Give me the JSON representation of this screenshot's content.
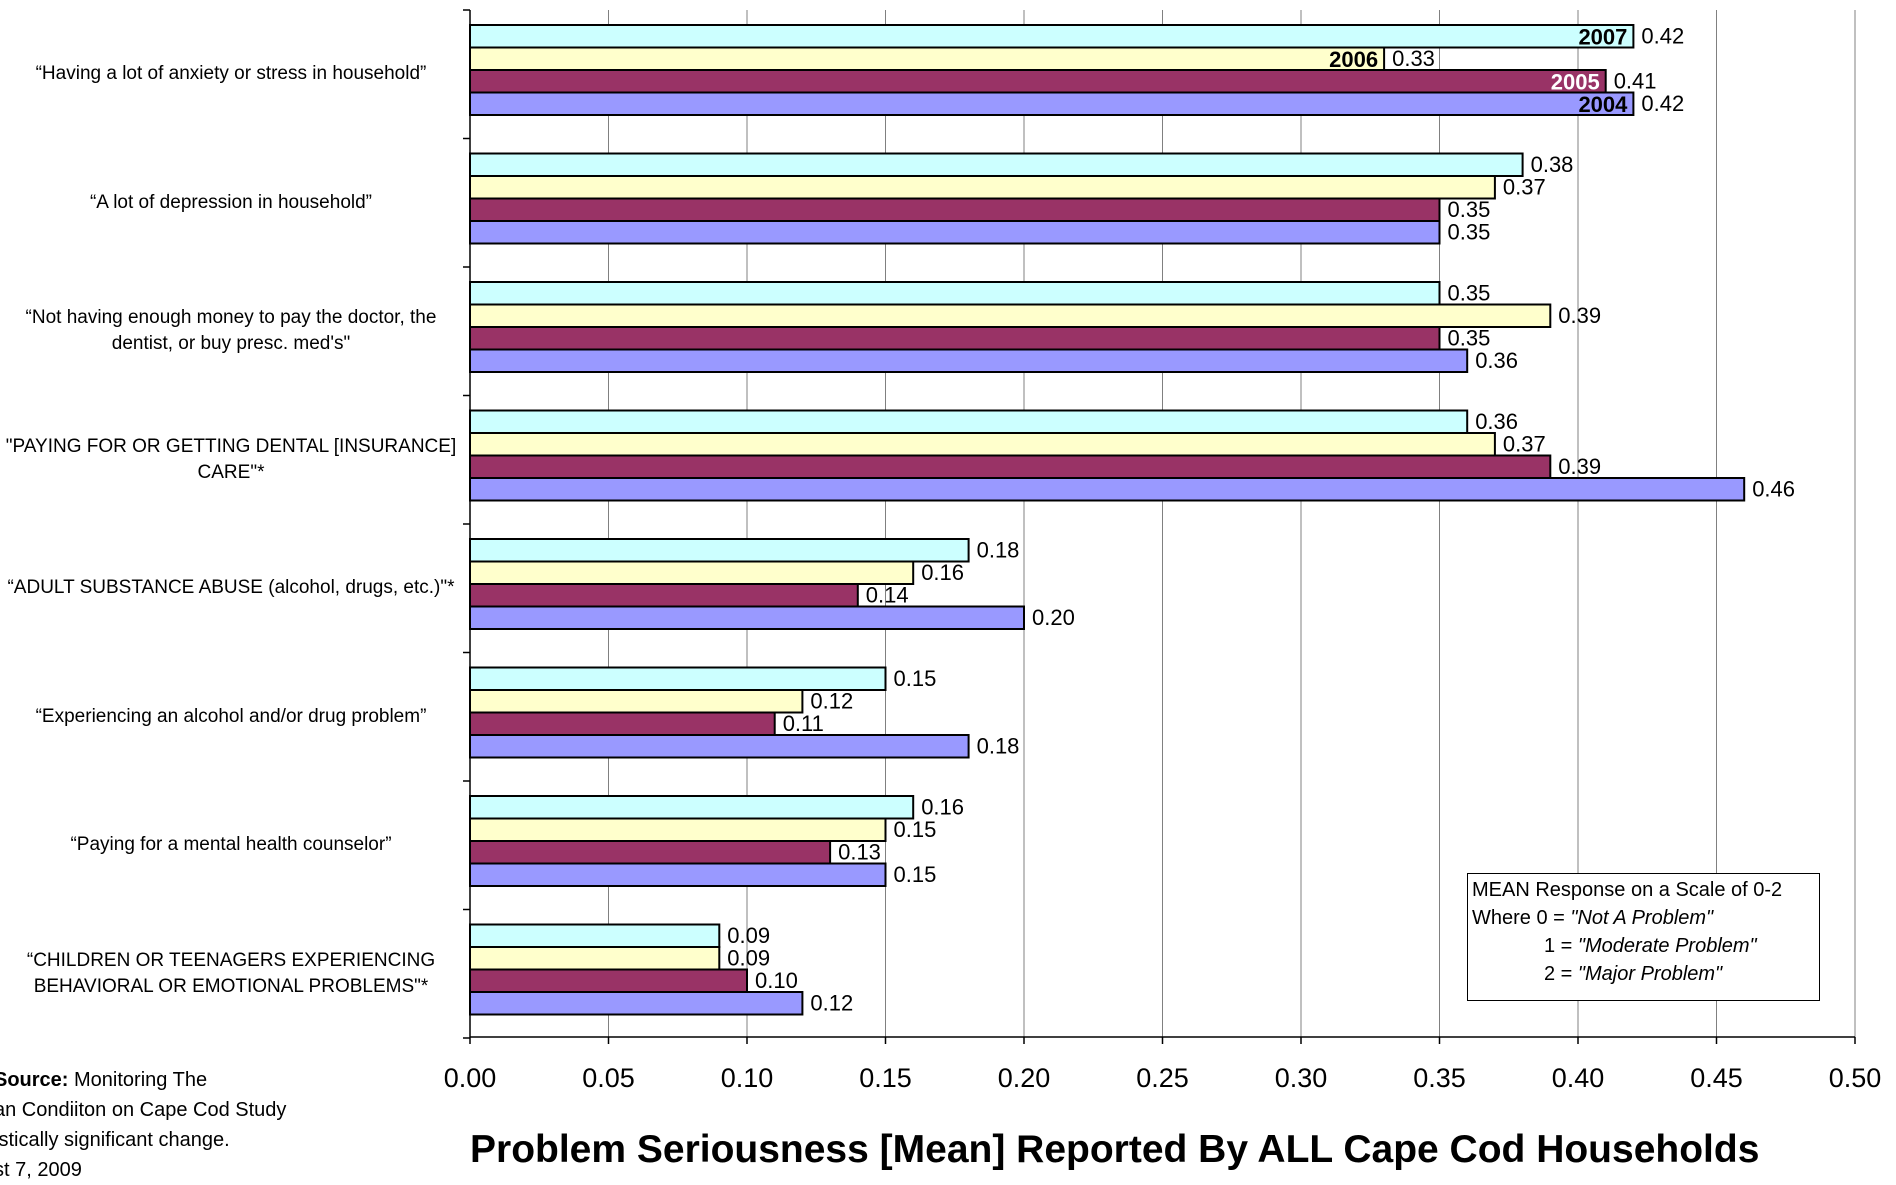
{
  "chart_data": {
    "type": "bar",
    "orientation": "horizontal",
    "title": "Problem Seriousness [Mean] Reported By ALL Cape Cod Households",
    "xlim": [
      0,
      0.5
    ],
    "x_ticks": [
      "0.00",
      "0.05",
      "0.10",
      "0.15",
      "0.20",
      "0.25",
      "0.30",
      "0.35",
      "0.40",
      "0.45",
      "0.50"
    ],
    "grid": true,
    "categories": [
      "“Having a lot of anxiety or stress in household”",
      "“A lot of depression in household”",
      "“Not having enough money to pay the doctor, the dentist, or buy presc. med's\"",
      "\"PAYING FOR OR GETTING DENTAL [INSURANCE] CARE\"*",
      "“ADULT SUBSTANCE ABUSE (alcohol, drugs, etc.)\"*",
      "“Experiencing an alcohol and/or drug problem”",
      "“Paying for a mental health counselor”",
      "“CHILDREN OR TEENAGERS EXPERIENCING BEHAVIORAL OR EMOTIONAL PROBLEMS\"*"
    ],
    "series": [
      {
        "name": "2007",
        "color": "#ccffff",
        "text_color": "#000000",
        "values": [
          0.42,
          0.38,
          0.35,
          0.36,
          0.18,
          0.15,
          0.16,
          0.09
        ],
        "labels": [
          "0.42",
          "0.38",
          "0.35",
          "0.36",
          "0.18",
          "0.15",
          "0.16",
          "0.09"
        ]
      },
      {
        "name": "2006",
        "color": "#ffffcc",
        "text_color": "#000000",
        "values": [
          0.33,
          0.37,
          0.39,
          0.37,
          0.16,
          0.12,
          0.15,
          0.09
        ],
        "labels": [
          "0.33",
          "0.37",
          "0.39",
          "0.37",
          "0.16",
          "0.12",
          "0.15",
          "0.09"
        ]
      },
      {
        "name": "2005",
        "color": "#993366",
        "text_color": "#ffffff",
        "values": [
          0.41,
          0.35,
          0.35,
          0.39,
          0.14,
          0.11,
          0.13,
          0.1
        ],
        "labels": [
          "0.41",
          "0.35",
          "0.35",
          "0.39",
          "0.14",
          "0.11",
          "0.13",
          "0.10"
        ]
      },
      {
        "name": "2004",
        "color": "#9999ff",
        "text_color": "#000000",
        "values": [
          0.42,
          0.35,
          0.36,
          0.46,
          0.2,
          0.18,
          0.15,
          0.12
        ],
        "labels": [
          "0.42",
          "0.35",
          "0.36",
          "0.46",
          "0.20",
          "0.18",
          "0.15",
          "0.12"
        ]
      }
    ],
    "legend_placement": "inside first bar group (year labels on bars)"
  },
  "scale_note": {
    "line1": "MEAN Response on a Scale of 0-2",
    "line2_prefix": "Where 0 = ",
    "line2_value": "\"Not A Problem\"",
    "line3_prefix": "1 = ",
    "line3_value": "\"Moderate Problem\"",
    "line4_prefix": "2 = ",
    "line4_value": "\"Major Problem\""
  },
  "source": {
    "label": "Source:",
    "line1": " Monitoring The",
    "line2": "an Condiiton on Cape Cod Study",
    "line3": "istically significant change.",
    "line4": "st 7, 2009"
  }
}
